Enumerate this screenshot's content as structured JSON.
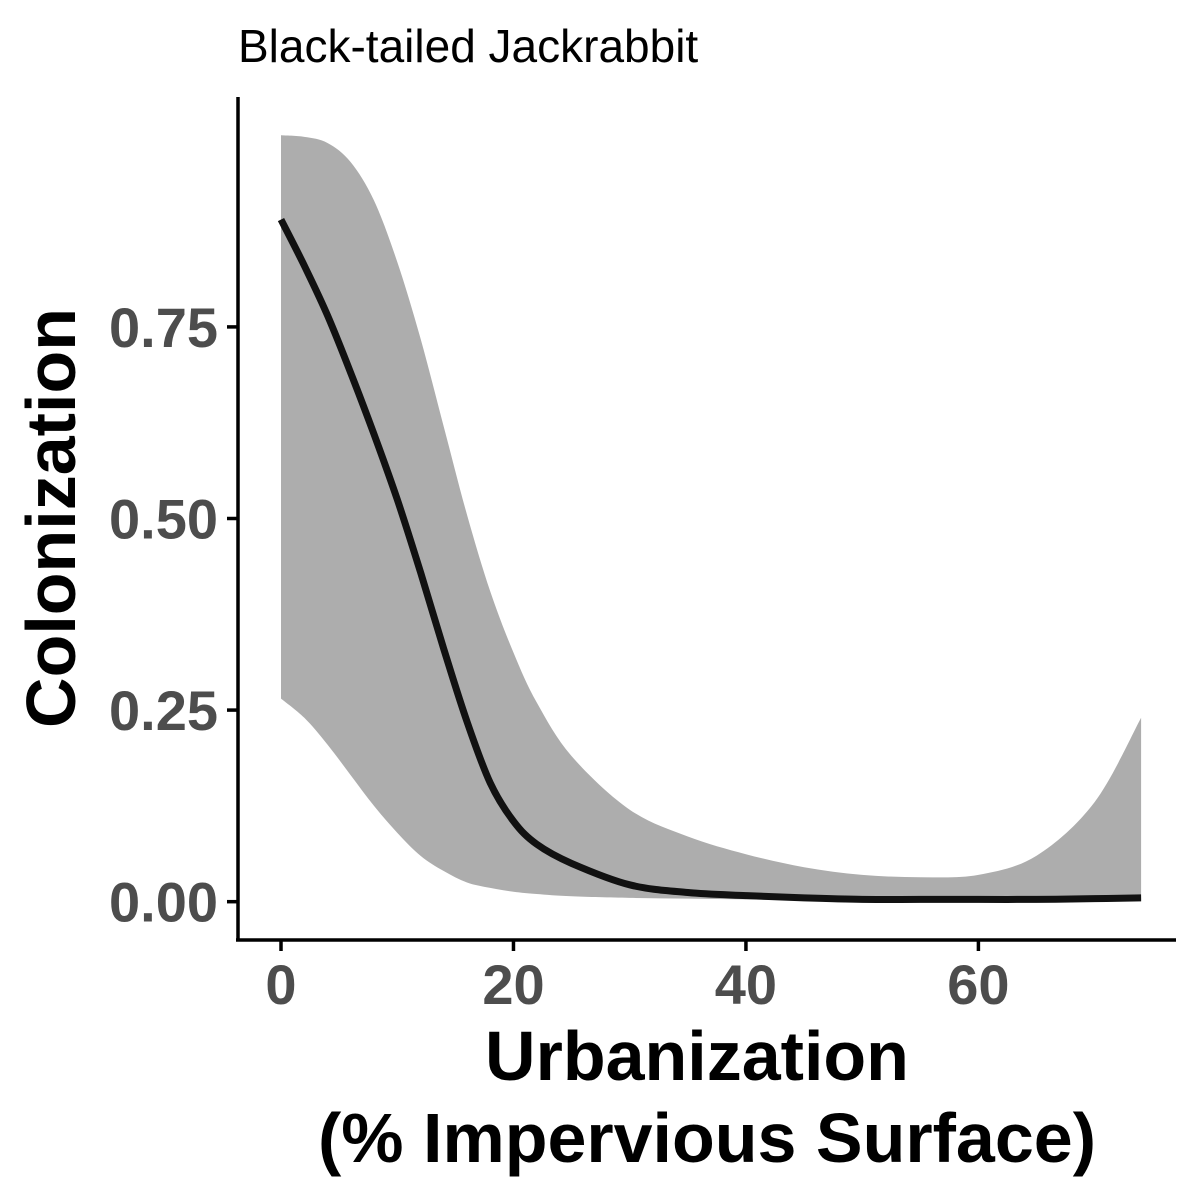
{
  "chart_data": {
    "type": "line",
    "title": "Black-tailed Jackrabbit",
    "xlabel_lines": [
      "Urbanization",
      "(% Impervious Surface)"
    ],
    "ylabel": "Colonization",
    "xlim": [
      -3.7,
      77
    ],
    "ylim": [
      -0.05,
      1.05
    ],
    "x_ticks": [
      0,
      20,
      40,
      60
    ],
    "x_tick_labels": [
      "0",
      "20",
      "40",
      "60"
    ],
    "y_ticks": [
      0,
      0.25,
      0.5,
      0.75
    ],
    "y_tick_labels": [
      "0.00",
      "0.25",
      "0.50",
      "0.75"
    ],
    "grid": false,
    "legend": "none",
    "series": [
      {
        "x": [
          0,
          2,
          4,
          6,
          8,
          10,
          12,
          14,
          16,
          18,
          20,
          22,
          25,
          30,
          35,
          40,
          45,
          50,
          55,
          60,
          65,
          70,
          74
        ],
        "y": [
          0.89,
          0.83,
          0.765,
          0.69,
          0.61,
          0.525,
          0.43,
          0.33,
          0.235,
          0.155,
          0.105,
          0.075,
          0.05,
          0.022,
          0.012,
          0.008,
          0.005,
          0.003,
          0.003,
          0.003,
          0.003,
          0.004,
          0.005
        ],
        "color": "#111111"
      }
    ],
    "ribbon": {
      "x": [
        0,
        2,
        4,
        6,
        8,
        10,
        12,
        14,
        16,
        18,
        20,
        22,
        25,
        30,
        35,
        40,
        45,
        50,
        55,
        60,
        65,
        70,
        74
      ],
      "lower": [
        0.265,
        0.24,
        0.205,
        0.165,
        0.125,
        0.09,
        0.06,
        0.04,
        0.025,
        0.018,
        0.013,
        0.01,
        0.007,
        0.005,
        0.004,
        0.003,
        0.002,
        0.002,
        0.002,
        0.002,
        0.002,
        0.002,
        0.002
      ],
      "upper": [
        1.0,
        0.998,
        0.99,
        0.965,
        0.915,
        0.835,
        0.735,
        0.62,
        0.505,
        0.405,
        0.325,
        0.26,
        0.19,
        0.12,
        0.085,
        0.062,
        0.045,
        0.035,
        0.032,
        0.035,
        0.06,
        0.13,
        0.24
      ],
      "color": "#adadad"
    }
  }
}
